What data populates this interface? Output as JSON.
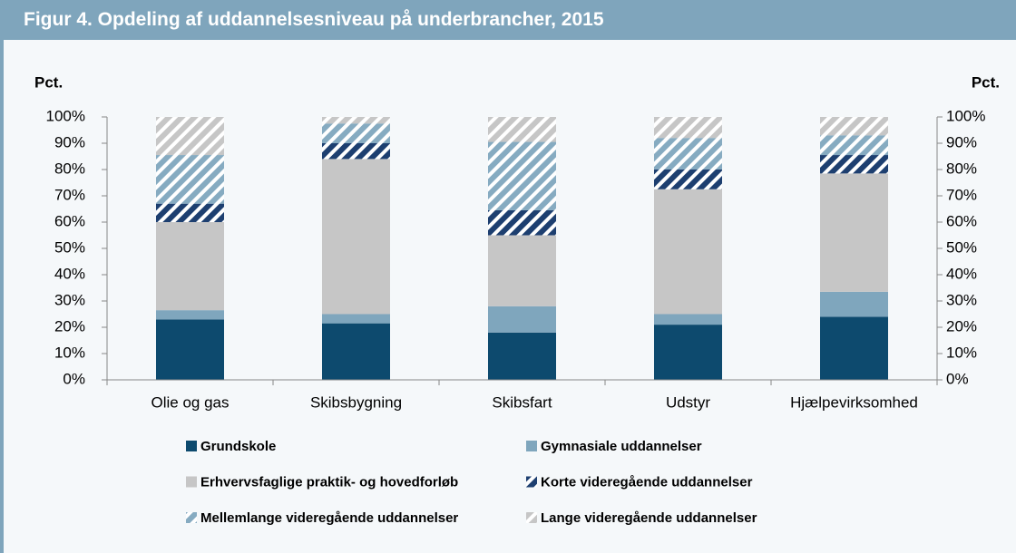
{
  "chart_data": {
    "type": "stacked_bar",
    "title": "Figur 4. Opdeling af uddannelsesniveau på underbrancher, 2015",
    "y_label": "Pct.",
    "y2_label": "Pct.",
    "categories": [
      "Olie og gas",
      "Skibsbygning",
      "Skibsfart",
      "Udstyr",
      "Hjælpevirksomhed"
    ],
    "series": [
      {
        "name": "Grundskole",
        "color": "#0d4a6e",
        "values": [
          23,
          21.5,
          18,
          21,
          24
        ]
      },
      {
        "name": "Gymnasiale uddannelser",
        "color": "#7fa6bd",
        "values": [
          3.5,
          3.5,
          10,
          4,
          9.5
        ]
      },
      {
        "name": "Erhvervsfaglige praktik- og hovedforløb",
        "color": "#c6c6c6",
        "values": [
          33.5,
          59,
          27,
          47.5,
          45
        ]
      },
      {
        "name": "Korte videregående uddannelser",
        "color": "#1d3f70",
        "hatch": true,
        "values": [
          7,
          6,
          9.5,
          7.5,
          7
        ]
      },
      {
        "name": "Mellemlange videregående uddannelser",
        "color": "#86abc1",
        "hatch": true,
        "values": [
          18.5,
          7.5,
          26,
          12,
          7.5
        ]
      },
      {
        "name": "Lange videregående uddannelser",
        "color": "#c6c6c6",
        "hatch": true,
        "values": [
          14.5,
          2.5,
          9.5,
          8,
          7
        ]
      }
    ],
    "ylim": [
      0,
      100
    ],
    "yticks": [
      {
        "value": 0,
        "label": "0%"
      },
      {
        "value": 10,
        "label": "10%"
      },
      {
        "value": 20,
        "label": "20%"
      },
      {
        "value": 30,
        "label": "30%"
      },
      {
        "value": 40,
        "label": "40%"
      },
      {
        "value": 50,
        "label": "50%"
      },
      {
        "value": 60,
        "label": "60%"
      },
      {
        "value": 70,
        "label": "70%"
      },
      {
        "value": 80,
        "label": "80%"
      },
      {
        "value": 90,
        "label": "90%"
      },
      {
        "value": 100,
        "label": "100%"
      }
    ],
    "y2lim": [
      0,
      100
    ],
    "y2ticks": [
      {
        "value": 0,
        "label": "0%"
      },
      {
        "value": 10,
        "label": "10%"
      },
      {
        "value": 20,
        "label": "20%"
      },
      {
        "value": 30,
        "label": "30%"
      },
      {
        "value": 40,
        "label": "40%"
      },
      {
        "value": 50,
        "label": "50%"
      },
      {
        "value": 60,
        "label": "60%"
      },
      {
        "value": 70,
        "label": "70%"
      },
      {
        "value": 80,
        "label": "80%"
      },
      {
        "value": 90,
        "label": "90%"
      },
      {
        "value": 100,
        "label": "100%"
      }
    ],
    "legend": "bottom"
  }
}
